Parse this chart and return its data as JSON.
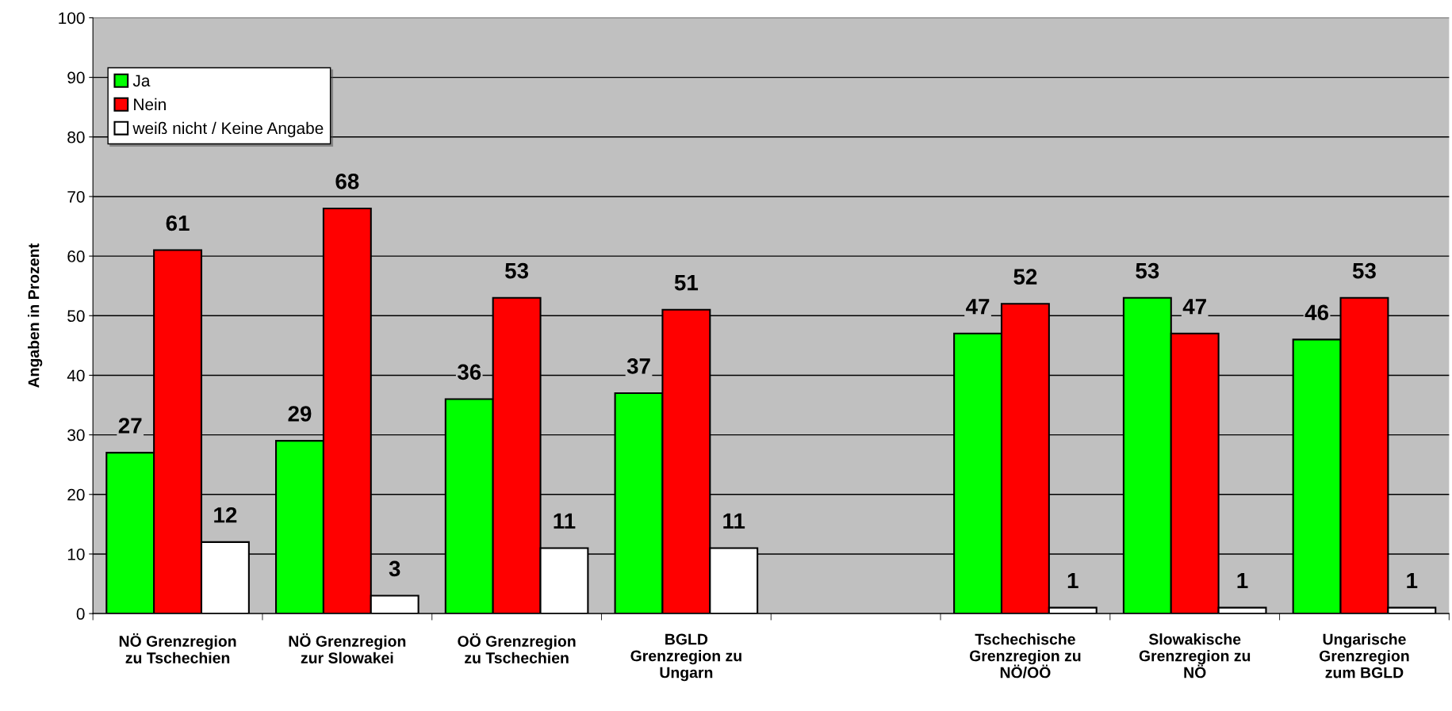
{
  "chart_data": {
    "type": "bar",
    "ylabel": "Angaben in Prozent",
    "categories": [
      "NÖ Grenzregion\nzu Tschechien",
      "NÖ Grenzregion\nzur Slowakei",
      "OÖ Grenzregion\nzu Tschechien",
      "BGLD\nGrenzregion zu\nUngarn",
      null,
      "Tschechische\nGrenzregion zu\nNÖ/OÖ",
      "Slowakische\nGrenzregion zu\nNÖ",
      "Ungarische\nGrenzregion\nzum BGLD"
    ],
    "series": [
      {
        "name": "Ja",
        "color": "#00ff00",
        "values": [
          27,
          29,
          36,
          37,
          null,
          47,
          53,
          46
        ]
      },
      {
        "name": "Nein",
        "color": "#ff0000",
        "values": [
          61,
          68,
          53,
          51,
          null,
          52,
          47,
          53
        ]
      },
      {
        "name": "weiß nicht / Keine Angabe",
        "color": "#ffffff",
        "values": [
          12,
          3,
          11,
          11,
          null,
          1,
          1,
          1
        ]
      }
    ],
    "ylim": [
      0,
      100
    ],
    "yticks": [
      0,
      10,
      20,
      30,
      40,
      50,
      60,
      70,
      80,
      90,
      100
    ],
    "grid": "y",
    "legend": "top left",
    "data_labels": true
  }
}
